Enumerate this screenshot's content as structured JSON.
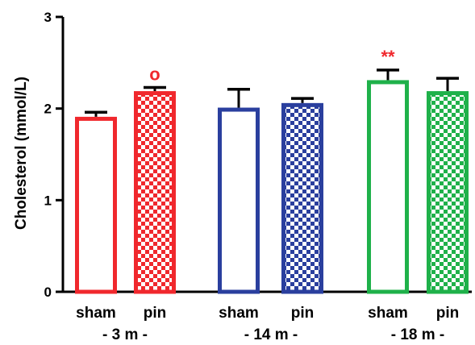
{
  "chart_data": {
    "type": "bar",
    "ylabel": "Cholesterol (mmol/L)",
    "ylim": [
      0,
      3
    ],
    "yticks": [
      "0",
      "1",
      "2",
      "3"
    ],
    "categories": [
      "sham",
      "pin",
      "sham",
      "pin",
      "sham",
      "pin"
    ],
    "groups": [
      {
        "label": "- 3 m -",
        "color": "#f0282d"
      },
      {
        "label": "- 14 m -",
        "color": "#2a3f9e"
      },
      {
        "label": "- 18 m -",
        "color": "#1fb14a"
      }
    ],
    "bars": [
      {
        "category": "sham",
        "group": 0,
        "value": 1.91,
        "error": 0.05,
        "fill": "open",
        "annotation": ""
      },
      {
        "category": "pin",
        "group": 0,
        "value": 2.19,
        "error": 0.04,
        "fill": "checkered",
        "annotation": "o"
      },
      {
        "category": "sham",
        "group": 1,
        "value": 2.01,
        "error": 0.2,
        "fill": "open",
        "annotation": ""
      },
      {
        "category": "pin",
        "group": 1,
        "value": 2.06,
        "error": 0.05,
        "fill": "checkered",
        "annotation": ""
      },
      {
        "category": "sham",
        "group": 2,
        "value": 2.31,
        "error": 0.11,
        "fill": "open",
        "annotation": "**"
      },
      {
        "category": "pin",
        "group": 2,
        "value": 2.19,
        "error": 0.14,
        "fill": "checkered",
        "annotation": ""
      }
    ],
    "annotation_color": "#f0282d",
    "grid": false,
    "legend": "none"
  }
}
